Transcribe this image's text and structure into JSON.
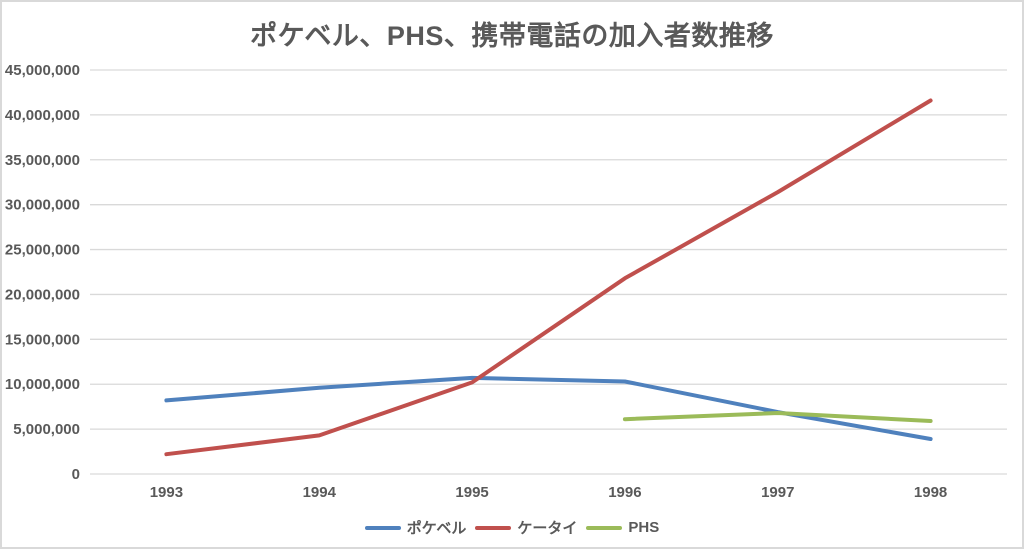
{
  "window": {
    "background": "#ffffff",
    "border_color": "#d9d9d9"
  },
  "chart_data": {
    "type": "line",
    "title": "ポケベル、PHS、携帯電話の加入者数推移",
    "title_color": "#595959",
    "categories": [
      "1993",
      "1994",
      "1995",
      "1996",
      "1997",
      "1998"
    ],
    "series": [
      {
        "id": "pager",
        "name": "ポケベル",
        "color": "#4F81BD",
        "values": [
          8200000,
          9600000,
          10700000,
          10300000,
          6900000,
          3900000
        ]
      },
      {
        "id": "mobile",
        "name": "ケータイ",
        "color": "#C0504D",
        "values": [
          2200000,
          4300000,
          10200000,
          21800000,
          31400000,
          41600000
        ]
      },
      {
        "id": "phs",
        "name": "PHS",
        "color": "#9BBB59",
        "values": [
          null,
          null,
          null,
          6100000,
          6800000,
          5900000
        ]
      }
    ],
    "xlabel": "",
    "ylabel": "",
    "ylim": [
      0,
      45000000
    ],
    "ytick_step": 5000000,
    "yticks": [
      "0",
      "5,000,000",
      "10,000,000",
      "15,000,000",
      "20,000,000",
      "25,000,000",
      "30,000,000",
      "35,000,000",
      "40,000,000",
      "45,000,000"
    ],
    "grid": "horizontal-only",
    "gridline_color": "#d9d9d9",
    "axis_label_color": "#595959",
    "legend_position": "bottom",
    "line_width": 4
  }
}
